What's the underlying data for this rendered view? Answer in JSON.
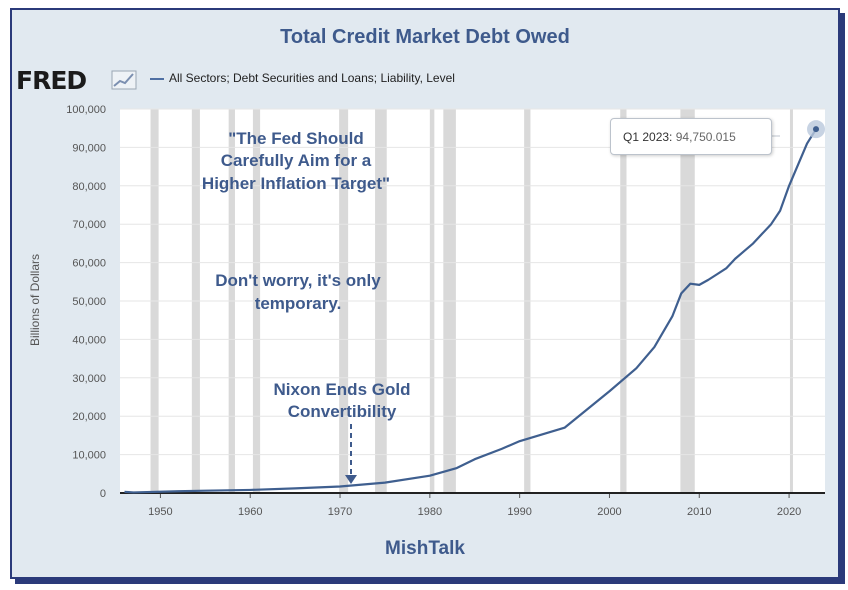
{
  "title": "Total Credit Market Debt Owed",
  "fred_logo": "FRED",
  "legend_label": "All Sectors; Debt Securities and Loans; Liability, Level",
  "footer": "MishTalk",
  "tooltip": {
    "label": "Q1 2023:",
    "value": "94,750.015"
  },
  "annotations": {
    "fed_line1": "\"The Fed Should",
    "fed_line2": "Carefully Aim for a",
    "fed_line3": "Higher Inflation Target\"",
    "worry_line1": "Don't worry, it's only",
    "worry_line2": "temporary.",
    "nixon_line1": "Nixon Ends Gold",
    "nixon_line2": "Convertibility"
  },
  "colors": {
    "line": "#3f5f8f",
    "recession": "#d9d9d9",
    "accent": "#3e5a8c",
    "frame": "#2b3a7a"
  },
  "chart_data": {
    "type": "line",
    "title": "Total Credit Market Debt Owed",
    "ylabel": "Billions of Dollars",
    "xlabel": "",
    "xlim": [
      1945.5,
      2024
    ],
    "ylim": [
      0,
      100000
    ],
    "x_ticks": [
      1950,
      1960,
      1970,
      1980,
      1990,
      2000,
      2010,
      2020
    ],
    "y_ticks": [
      0,
      10000,
      20000,
      30000,
      40000,
      50000,
      60000,
      70000,
      80000,
      90000,
      100000
    ],
    "y_tick_labels": [
      "0",
      "10,000",
      "20,000",
      "30,000",
      "40,000",
      "50,000",
      "60,000",
      "70,000",
      "80,000",
      "90,000",
      "100,000"
    ],
    "recessions": [
      [
        1948.9,
        1949.8
      ],
      [
        1953.5,
        1954.4
      ],
      [
        1957.6,
        1958.3
      ],
      [
        1960.3,
        1961.1
      ],
      [
        1969.9,
        1970.9
      ],
      [
        1973.9,
        1975.2
      ],
      [
        1980.0,
        1980.5
      ],
      [
        1981.5,
        1982.9
      ],
      [
        1990.5,
        1991.2
      ],
      [
        2001.2,
        2001.9
      ],
      [
        2007.9,
        2009.5
      ],
      [
        2020.1,
        2020.4
      ]
    ],
    "series": [
      {
        "points": [
          [
            1946,
            300
          ],
          [
            1947,
            150
          ],
          [
            1952,
            450
          ],
          [
            1955,
            600
          ],
          [
            1960,
            800
          ],
          [
            1965,
            1200
          ],
          [
            1970,
            1700
          ],
          [
            1975,
            2700
          ],
          [
            1980,
            4500
          ],
          [
            1983,
            6500
          ],
          [
            1985,
            8800
          ],
          [
            1988,
            11500
          ],
          [
            1990,
            13500
          ],
          [
            1995,
            17000
          ],
          [
            2000,
            26500
          ],
          [
            2003,
            32500
          ],
          [
            2005,
            38000
          ],
          [
            2007,
            46000
          ],
          [
            2008,
            52000
          ],
          [
            2009,
            54500
          ],
          [
            2010,
            54200
          ],
          [
            2011,
            55500
          ],
          [
            2012,
            57000
          ],
          [
            2013,
            58500
          ],
          [
            2014,
            61000
          ],
          [
            2015,
            63000
          ],
          [
            2016,
            65000
          ],
          [
            2017,
            67500
          ],
          [
            2018,
            70000
          ],
          [
            2019,
            73500
          ],
          [
            2020,
            80000
          ],
          [
            2021,
            85500
          ],
          [
            2022,
            91000
          ],
          [
            2023,
            94750.015
          ]
        ]
      }
    ]
  }
}
